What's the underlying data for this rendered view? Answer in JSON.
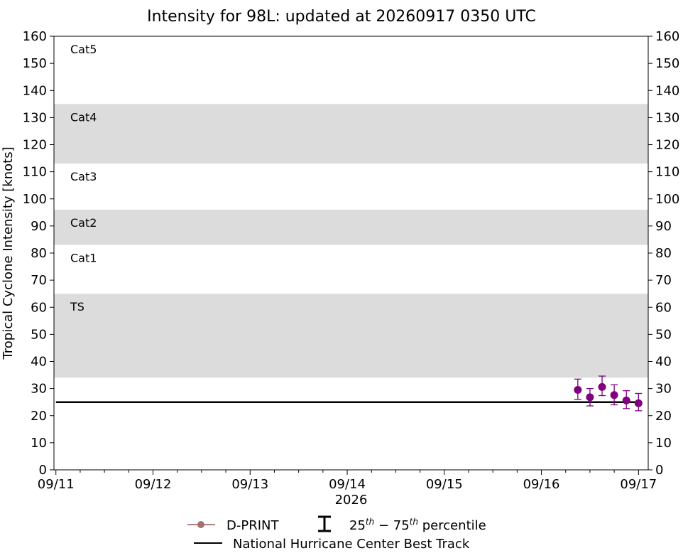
{
  "chart_data": {
    "type": "scatter",
    "title": "Intensity for 98L: updated at 20260917 0350 UTC",
    "ylabel": "Tropical Cyclone Intensity [knots]",
    "xlabel": "2026",
    "ylim": [
      0,
      160
    ],
    "yticks": [
      0,
      10,
      20,
      30,
      40,
      50,
      60,
      70,
      80,
      90,
      100,
      110,
      120,
      130,
      140,
      150,
      160
    ],
    "xlim": [
      "09/11 00:00",
      "09/17 03:00"
    ],
    "xticks": [
      {
        "label": "09/11",
        "day": 0
      },
      {
        "label": "09/12",
        "day": 1
      },
      {
        "label": "09/13",
        "day": 2
      },
      {
        "label": "09/14",
        "day": 3
      },
      {
        "label": "09/15",
        "day": 4
      },
      {
        "label": "09/16",
        "day": 5
      },
      {
        "label": "09/17",
        "day": 6
      }
    ],
    "grid": false,
    "bands": [
      {
        "label": "TS",
        "from": 34,
        "to": 65,
        "shaded": true
      },
      {
        "label": "Cat1",
        "from": 65,
        "to": 83,
        "shaded": false
      },
      {
        "label": "Cat2",
        "from": 83,
        "to": 96,
        "shaded": true
      },
      {
        "label": "Cat3",
        "from": 96,
        "to": 113,
        "shaded": false
      },
      {
        "label": "Cat4",
        "from": 113,
        "to": 135,
        "shaded": true
      },
      {
        "label": "Cat5",
        "from": 135,
        "to": 160,
        "shaded": false
      }
    ],
    "series": [
      {
        "name": "D-PRINT",
        "color": "#800080",
        "legend_color": "#a57070",
        "points": [
          {
            "time": "09/16 09:00",
            "day": 5.375,
            "y": 29.5,
            "p25": 26.0,
            "p75": 33.5
          },
          {
            "time": "09/16 12:00",
            "day": 5.5,
            "y": 26.8,
            "p25": 23.6,
            "p75": 30.0
          },
          {
            "time": "09/16 15:00",
            "day": 5.625,
            "y": 30.6,
            "p25": 27.4,
            "p75": 34.6
          },
          {
            "time": "09/16 18:00",
            "day": 5.75,
            "y": 27.6,
            "p25": 24.0,
            "p75": 31.4
          },
          {
            "time": "09/16 21:00",
            "day": 5.875,
            "y": 25.6,
            "p25": 22.6,
            "p75": 29.2
          },
          {
            "time": "09/17 00:00",
            "day": 6.0,
            "y": 24.6,
            "p25": 21.8,
            "p75": 28.2
          }
        ]
      },
      {
        "name": "National Hurricane Center Best Track",
        "color": "#000000",
        "points": [
          {
            "time": "09/11 00:00",
            "day": 0,
            "y": 25
          },
          {
            "time": "09/17 00:00",
            "day": 6,
            "y": 25
          }
        ]
      }
    ],
    "legend": {
      "position": "bottom-center",
      "dprint_label": "D-PRINT",
      "percentile_label_parts": [
        "25",
        "th",
        " − 75",
        "th",
        " percentile"
      ],
      "best_track_label": "National Hurricane Center Best Track"
    }
  }
}
